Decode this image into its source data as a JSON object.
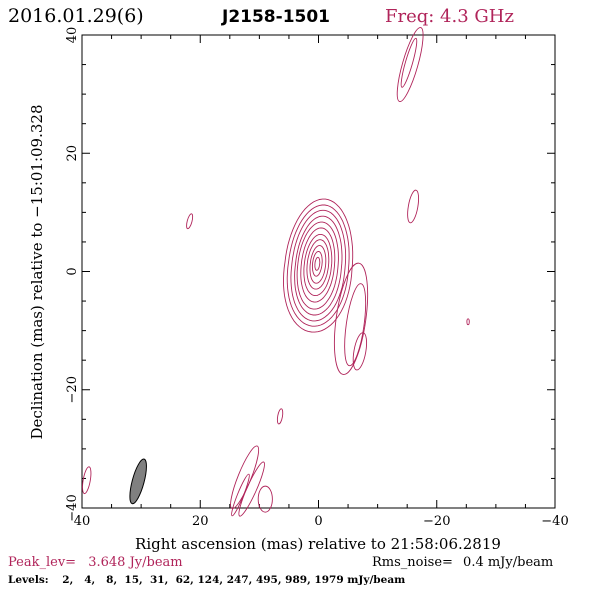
{
  "header": {
    "date_label": "2016.01.29(6)",
    "source_name": "J2158-1501",
    "freq_label": "Freq: 4.3 GHz"
  },
  "axes": {
    "xlabel": "Right ascension (mas) relative to 21:58:06.2819",
    "ylabel": "Declination (mas) relative to −15:01:09.328",
    "x_ticks": [
      "40",
      "20",
      "0",
      "−20",
      "−40"
    ],
    "y_ticks": [
      "40",
      "20",
      "0",
      "−20",
      "−40"
    ]
  },
  "footer": {
    "peak_label": "Peak_lev=",
    "peak_value": "3.648 Jy/beam",
    "rms_label": "Rms_noise=",
    "rms_value": "0.4 mJy/beam",
    "levels_label": "Levels:",
    "levels_values": "2,   4,   8,  15,  31,  62, 124, 247, 495, 989, 1979 mJy/beam"
  },
  "colors": {
    "contour": "#b0245a",
    "accent": "#b0245a",
    "text": "#000000",
    "beam_fill": "#808080"
  },
  "chart_data": {
    "type": "contour",
    "xlim": [
      40,
      -40
    ],
    "ylim": [
      -40,
      40
    ],
    "units": "mas",
    "contour_levels_mJy": [
      2,
      4,
      8,
      15,
      31,
      62,
      124,
      247,
      495,
      989,
      1979
    ],
    "core": {
      "x": 0,
      "y": 1,
      "rings": [
        {
          "a": 5.7,
          "b": 11.3,
          "dx": 0.0,
          "dy": 0.0,
          "skew": 0.1
        },
        {
          "a": 5.1,
          "b": 10.3,
          "dx": 0.0,
          "dy": 0.0,
          "skew": 0.09
        },
        {
          "a": 4.5,
          "b": 9.4,
          "dx": 0.0,
          "dy": 0.0,
          "skew": 0.08
        },
        {
          "a": 3.9,
          "b": 8.4,
          "dx": 0.0,
          "dy": 0.0,
          "skew": 0.07
        },
        {
          "a": 3.4,
          "b": 7.4,
          "dx": 0.1,
          "dy": 0.0,
          "skew": 0.06
        },
        {
          "a": 2.8,
          "b": 6.3,
          "dx": 0.1,
          "dy": 0.1,
          "skew": 0.05
        },
        {
          "a": 2.3,
          "b": 5.2,
          "dx": 0.1,
          "dy": 0.1,
          "skew": 0.04
        },
        {
          "a": 1.8,
          "b": 4.2,
          "dx": 0.1,
          "dy": 0.2,
          "skew": 0.03
        },
        {
          "a": 1.3,
          "b": 3.2,
          "dx": 0.1,
          "dy": 0.2,
          "skew": 0.02
        },
        {
          "a": 0.8,
          "b": 2.1,
          "dx": 0.2,
          "dy": 0.3,
          "skew": 0.0
        },
        {
          "a": 0.4,
          "b": 1.1,
          "dx": 0.2,
          "dy": 0.3,
          "skew": 0.0
        }
      ]
    },
    "extension_loops": [
      {
        "x": -5.5,
        "y": -8.0,
        "a": 2.5,
        "b": 9.5,
        "angle": 8
      },
      {
        "x": -6.2,
        "y": -9.0,
        "a": 1.5,
        "b": 7.0,
        "angle": 8
      },
      {
        "x": -7.0,
        "y": -13.5,
        "a": 1.0,
        "b": 3.2,
        "angle": 10
      }
    ],
    "blobs": [
      {
        "name": "north-jet-outer",
        "x": -15.5,
        "y": 35.0,
        "a": 1.3,
        "b": 6.5,
        "angle": 16
      },
      {
        "name": "north-jet-inner",
        "x": -15.3,
        "y": 35.3,
        "a": 0.6,
        "b": 4.3,
        "angle": 16
      },
      {
        "name": "blob-right",
        "x": -16.0,
        "y": 11.0,
        "a": 0.8,
        "b": 2.8,
        "angle": 10
      },
      {
        "name": "blob-left",
        "x": 21.8,
        "y": 8.5,
        "a": 0.4,
        "b": 1.3,
        "angle": 15
      },
      {
        "name": "blob-dot",
        "x": -25.3,
        "y": -8.5,
        "a": 0.2,
        "b": 0.5,
        "angle": 0
      },
      {
        "name": "blob-small",
        "x": 6.5,
        "y": -24.5,
        "a": 0.4,
        "b": 1.3,
        "angle": 10
      },
      {
        "name": "blob-corner",
        "x": 39.2,
        "y": -35.3,
        "a": 0.6,
        "b": 2.3,
        "angle": 10
      },
      {
        "name": "south-arc-a",
        "x": 12.5,
        "y": -34.8,
        "a": 1.1,
        "b": 5.7,
        "angle": 22
      },
      {
        "name": "south-arc-b",
        "x": 11.3,
        "y": -36.8,
        "a": 0.8,
        "b": 5.0,
        "angle": 24
      },
      {
        "name": "south-arc-c",
        "x": 13.2,
        "y": -37.8,
        "a": 0.5,
        "b": 3.8,
        "angle": 22
      },
      {
        "name": "south-blob-d",
        "x": 9.0,
        "y": -38.5,
        "a": 1.2,
        "b": 2.2,
        "angle": 0
      }
    ],
    "beam": {
      "x": 30.5,
      "y": -35.5,
      "a": 1.0,
      "b": 3.9,
      "angle": 15
    }
  }
}
